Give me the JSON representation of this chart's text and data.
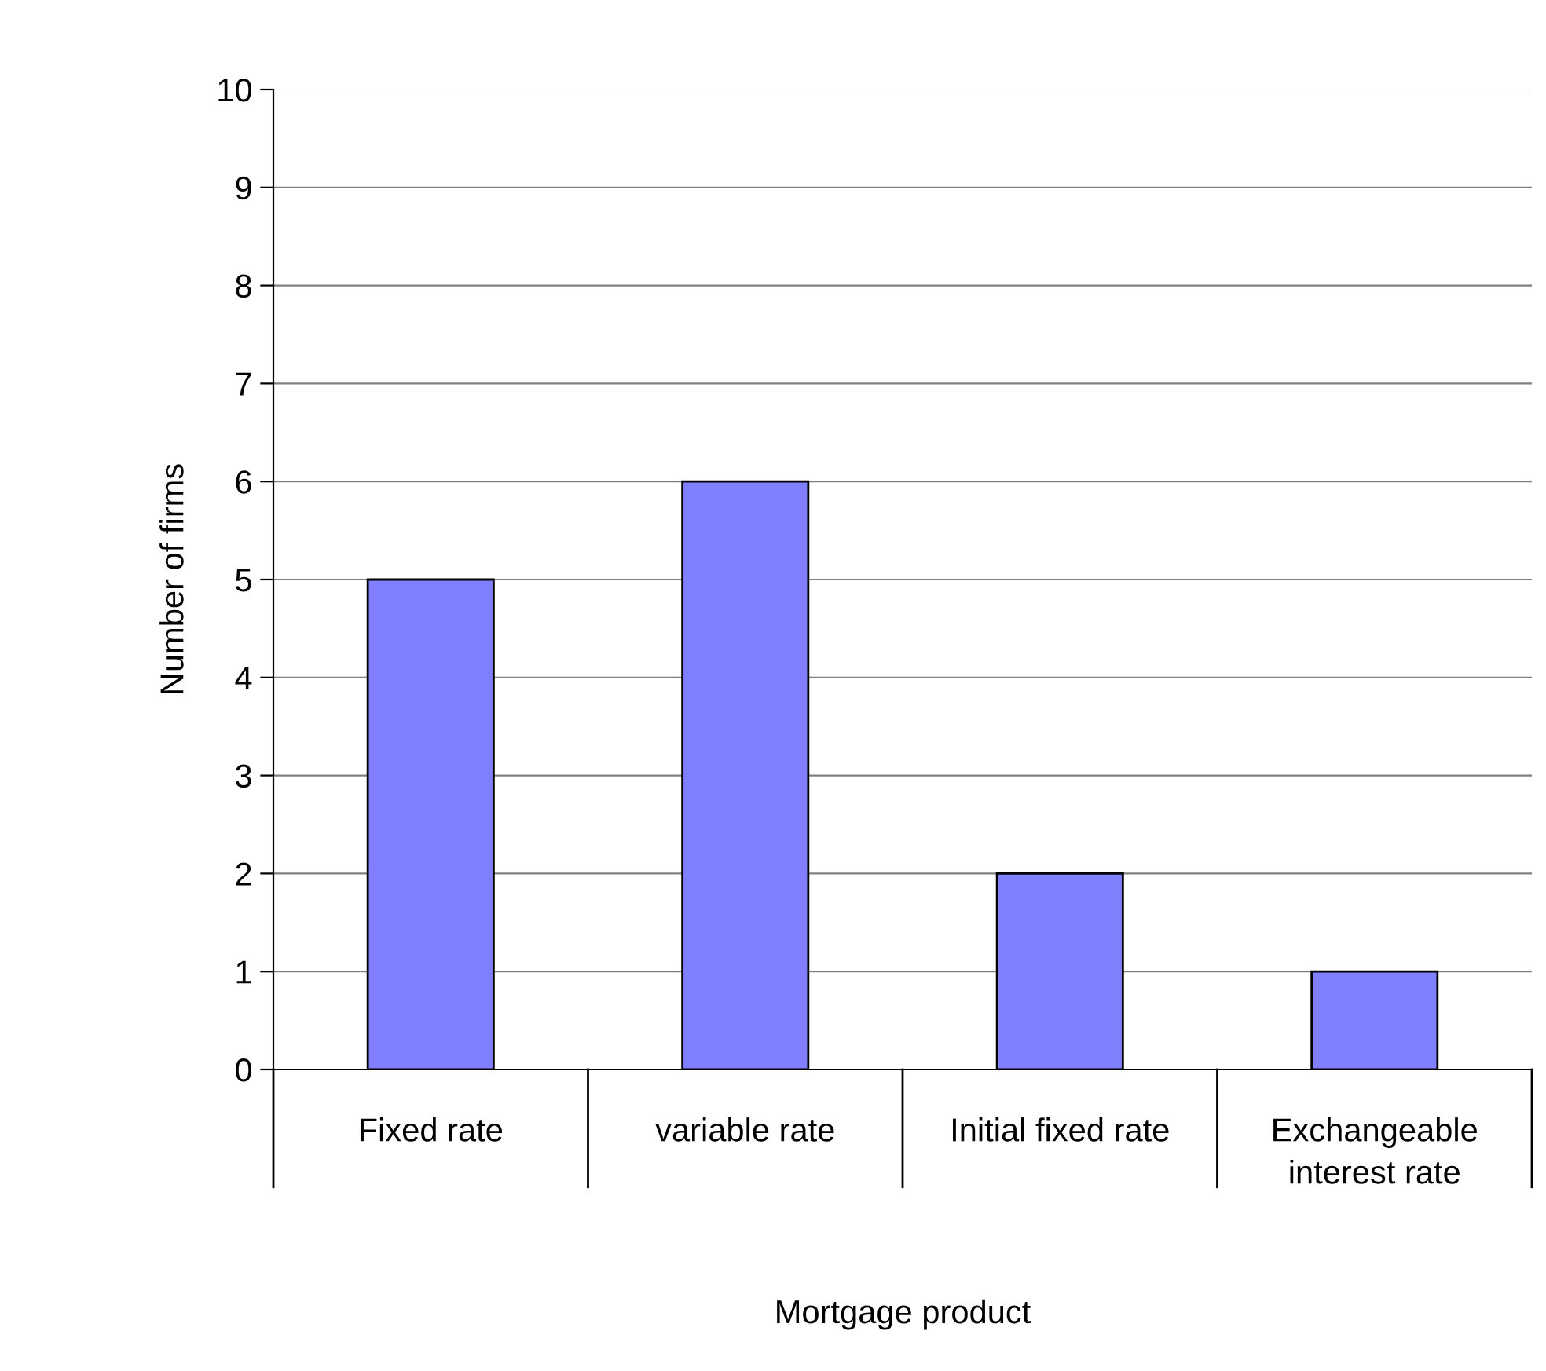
{
  "chart_data": {
    "type": "bar",
    "xlabel": "Mortgage product",
    "ylabel": "Number of firms",
    "categories": [
      "Fixed rate",
      "variable rate",
      "Initial fixed rate",
      "Exchangeable\ninterest rate"
    ],
    "values": [
      5,
      6,
      2,
      1
    ],
    "color": "#8080ff",
    "ylim": [
      0,
      10
    ],
    "yticks": [
      0,
      1,
      2,
      3,
      4,
      5,
      6,
      7,
      8,
      9,
      10
    ],
    "grid": "y",
    "legend": false
  }
}
